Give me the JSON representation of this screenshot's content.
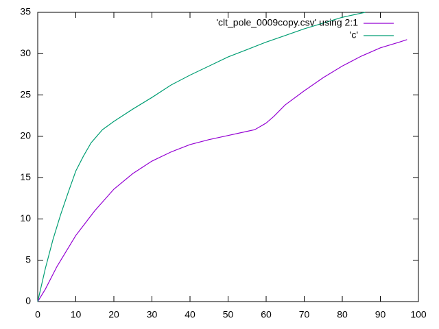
{
  "chart_data": {
    "type": "line",
    "series": [
      {
        "name": "'clt_pole_0009copy.csv' using 2:1",
        "color": "#9400d3",
        "x": [
          0,
          2,
          5,
          10,
          15,
          20,
          25,
          30,
          35,
          40,
          45,
          50,
          55,
          57,
          60,
          62,
          65,
          70,
          75,
          80,
          85,
          90,
          95,
          97
        ],
        "values": [
          0,
          1.5,
          4.2,
          8,
          11,
          13.6,
          15.5,
          17,
          18.1,
          19,
          19.6,
          20.1,
          20.6,
          20.8,
          21.6,
          22.4,
          23.8,
          25.5,
          27.1,
          28.5,
          29.7,
          30.7,
          31.4,
          31.7
        ]
      },
      {
        "name": "'c'",
        "color": "#009e73",
        "x": [
          0,
          2,
          4,
          6,
          8,
          10,
          12,
          14,
          17,
          20,
          25,
          30,
          35,
          40,
          45,
          50,
          55,
          60,
          65,
          70,
          75,
          80,
          86
        ],
        "values": [
          0,
          4,
          7.5,
          10.5,
          13.2,
          15.8,
          17.6,
          19.2,
          20.8,
          21.8,
          23.3,
          24.7,
          26.2,
          27.4,
          28.5,
          29.6,
          30.5,
          31.4,
          32.2,
          33,
          33.7,
          34.4,
          35
        ]
      }
    ],
    "xlim": [
      0,
      100
    ],
    "xticks": [
      0,
      10,
      20,
      30,
      40,
      50,
      60,
      70,
      80,
      90,
      100
    ],
    "ylim": [
      0,
      35
    ],
    "yticks": [
      0,
      5,
      10,
      15,
      20,
      25,
      30,
      35
    ],
    "legend": "top-right"
  }
}
